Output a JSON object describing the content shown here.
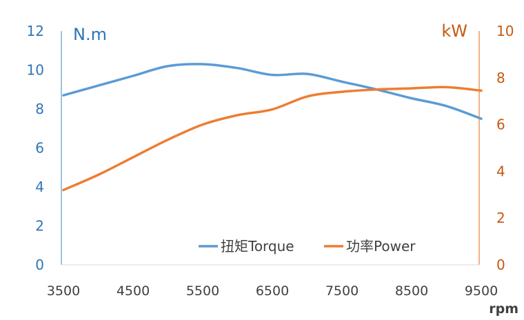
{
  "chart_data": {
    "type": "line",
    "x_tick_labels": [
      "3500",
      "4500",
      "5500",
      "6500",
      "7500",
      "8500",
      "9500"
    ],
    "xlabel": "rpm",
    "xlim": [
      3500,
      9500
    ],
    "y_left": {
      "label": "N.m",
      "ylim": [
        0,
        12
      ],
      "tick_labels": [
        "0",
        "2",
        "4",
        "6",
        "8",
        "10",
        "12"
      ],
      "color": "#2e75b6"
    },
    "y_right": {
      "label": "kW",
      "ylim": [
        0,
        10
      ],
      "tick_labels": [
        "0",
        "2",
        "4",
        "6",
        "8",
        "10"
      ],
      "color": "#c55a11"
    },
    "grid": false,
    "legend_position": "bottom-right",
    "series": [
      {
        "name": "扭矩Torque",
        "axis": "left",
        "color": "#5b9bd5",
        "x": [
          3500,
          4000,
          4500,
          5000,
          5500,
          6000,
          6500,
          7000,
          7500,
          8000,
          8500,
          9000,
          9500
        ],
        "y": [
          8.7,
          9.2,
          9.7,
          10.2,
          10.3,
          10.1,
          9.75,
          9.8,
          9.4,
          9.0,
          8.55,
          8.15,
          7.5
        ]
      },
      {
        "name": "功率Power",
        "axis": "right",
        "color": "#ed7d31",
        "x": [
          3500,
          4000,
          4500,
          5000,
          5500,
          6000,
          6500,
          7000,
          7500,
          8000,
          8500,
          9000,
          9500
        ],
        "y": [
          3.2,
          3.85,
          4.6,
          5.35,
          6.0,
          6.4,
          6.65,
          7.2,
          7.4,
          7.5,
          7.55,
          7.6,
          7.45
        ]
      }
    ]
  }
}
